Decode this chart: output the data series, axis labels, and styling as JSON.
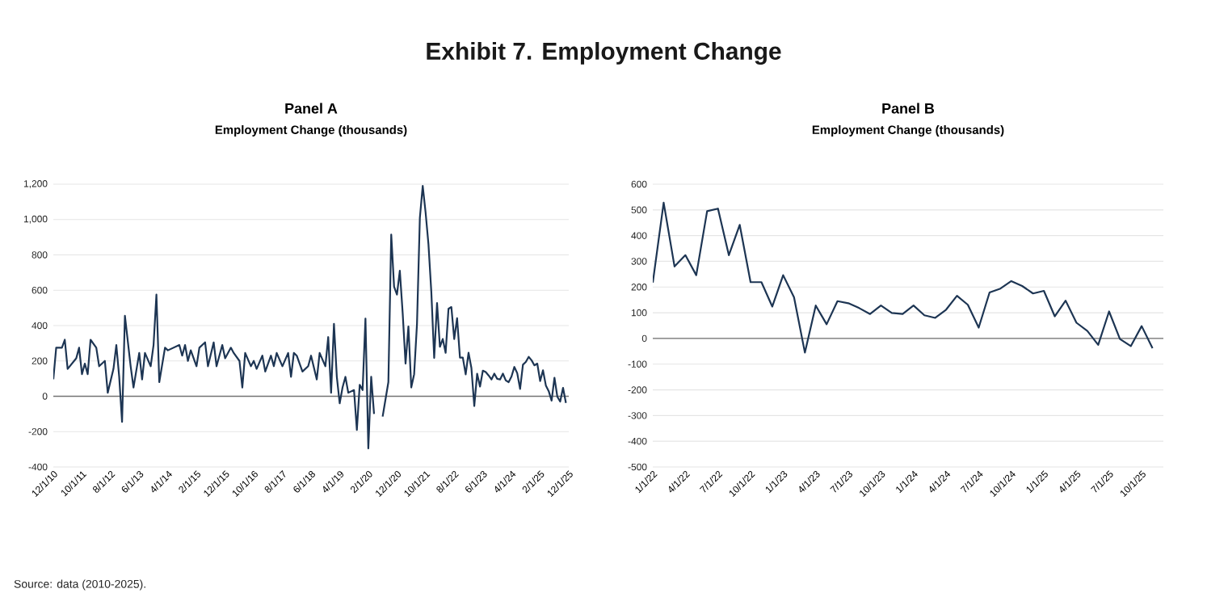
{
  "chart_data": [
    {
      "type": "line",
      "title": "Panel A",
      "subtitle": "Employment Change (thousands)",
      "annotations": [
        "Exhibit 7. Employment Change",
        "Source: data (2010-2025)."
      ],
      "x": [
        "2010-12",
        "2011-01",
        "2011-03",
        "2011-04",
        "2011-05",
        "2011-08",
        "2011-09",
        "2011-10",
        "2011-11",
        "2011-12",
        "2012-01",
        "2012-03",
        "2012-04",
        "2012-06",
        "2012-07",
        "2012-09",
        "2012-10",
        "2012-11",
        "2012-12",
        "2013-01",
        "2013-03",
        "2013-04",
        "2013-06",
        "2013-07",
        "2013-08",
        "2013-10",
        "2013-11",
        "2013-12",
        "2014-01",
        "2014-03",
        "2014-04",
        "2014-06",
        "2014-08",
        "2014-09",
        "2014-10",
        "2014-11",
        "2014-12",
        "2015-02",
        "2015-03",
        "2015-05",
        "2015-06",
        "2015-08",
        "2015-09",
        "2015-11",
        "2015-12",
        "2016-02",
        "2016-03",
        "2016-05",
        "2016-06",
        "2016-07",
        "2016-09",
        "2016-10",
        "2016-11",
        "2017-01",
        "2017-02",
        "2017-04",
        "2017-05",
        "2017-06",
        "2017-08",
        "2017-10",
        "2017-11",
        "2017-12",
        "2018-01",
        "2018-03",
        "2018-05",
        "2018-06",
        "2018-08",
        "2018-09",
        "2018-11",
        "2018-12",
        "2019-01",
        "2019-02",
        "2019-03",
        "2019-04",
        "2019-05",
        "2019-06",
        "2019-07",
        "2019-09",
        "2019-10",
        "2019-11",
        "2019-12",
        "2020-01",
        "2020-02",
        "2020-03",
        "2020-04",
        "2020-05",
        "2020-06",
        "2020-07",
        "2020-09",
        "2020-10",
        "2020-11",
        "2020-12",
        "2021-01",
        "2021-02",
        "2021-03",
        "2021-04",
        "2021-05",
        "2021-06",
        "2021-07",
        "2021-08",
        "2021-09",
        "2021-10",
        "2021-11",
        "2021-12",
        "2022-01",
        "2022-02",
        "2022-03",
        "2022-04",
        "2022-05",
        "2022-06",
        "2022-07",
        "2022-08",
        "2022-09",
        "2022-10",
        "2022-11",
        "2022-12",
        "2023-01",
        "2023-02",
        "2023-03",
        "2023-04",
        "2023-05",
        "2023-06",
        "2023-07",
        "2023-08",
        "2023-09",
        "2023-10",
        "2023-11",
        "2023-12",
        "2024-01",
        "2024-02",
        "2024-03",
        "2024-04",
        "2024-05",
        "2024-06",
        "2024-07",
        "2024-08",
        "2024-09",
        "2024-10",
        "2024-11",
        "2024-12",
        "2025-01",
        "2025-02",
        "2025-03",
        "2025-04",
        "2025-05",
        "2025-06",
        "2025-07",
        "2025-08",
        "2025-09",
        "2025-10",
        "2025-11"
      ],
      "series": [
        {
          "color": "#1d3553",
          "values": [
            96,
            275,
            275,
            320,
            155,
            215,
            275,
            125,
            185,
            125,
            320,
            275,
            170,
            200,
            20,
            155,
            290,
            110,
            -145,
            455,
            170,
            50,
            245,
            95,
            245,
            170,
            290,
            575,
            80,
            275,
            260,
            275,
            290,
            230,
            290,
            200,
            260,
            170,
            275,
            305,
            170,
            305,
            170,
            290,
            215,
            275,
            245,
            200,
            50,
            245,
            170,
            200,
            155,
            230,
            140,
            230,
            170,
            245,
            170,
            245,
            110,
            245,
            230,
            140,
            170,
            230,
            95,
            245,
            170,
            335,
            20,
            410,
            110,
            -40,
            50,
            110,
            20,
            35,
            -190,
            65,
            35,
            440,
            -295,
            110,
            -100,
            null,
            null,
            -115,
            80,
            915,
            620,
            575,
            710,
            470,
            185,
            395,
            50,
            125,
            410,
            1010,
            1190,
            1040,
            860,
            590,
            217,
            528,
            280,
            324,
            246,
            495,
            505,
            324,
            442,
            219,
            219,
            124,
            246,
            160,
            -55,
            128,
            55,
            145,
            137,
            118,
            95,
            128,
            99,
            95,
            128,
            90,
            80,
            112,
            166,
            131,
            42,
            179,
            194,
            223,
            204,
            175,
            185,
            86,
            147,
            61,
            29,
            -25,
            105,
            -2,
            -30,
            48,
            -38
          ]
        }
      ],
      "xlim": [
        "2010-12",
        "2025-12"
      ],
      "xticks": [
        {
          "value": "2010-12",
          "label": "12/1/10"
        },
        {
          "value": "2011-10",
          "label": "10/1/11"
        },
        {
          "value": "2012-08",
          "label": "8/1/12"
        },
        {
          "value": "2013-06",
          "label": "6/1/13"
        },
        {
          "value": "2014-04",
          "label": "4/1/14"
        },
        {
          "value": "2015-02",
          "label": "2/1/15"
        },
        {
          "value": "2015-12",
          "label": "12/1/15"
        },
        {
          "value": "2016-10",
          "label": "10/1/16"
        },
        {
          "value": "2017-08",
          "label": "8/1/17"
        },
        {
          "value": "2018-06",
          "label": "6/1/18"
        },
        {
          "value": "2019-04",
          "label": "4/1/19"
        },
        {
          "value": "2020-02",
          "label": "2/1/20"
        },
        {
          "value": "2020-12",
          "label": "12/1/20"
        },
        {
          "value": "2021-10",
          "label": "10/1/21"
        },
        {
          "value": "2022-08",
          "label": "8/1/22"
        },
        {
          "value": "2023-06",
          "label": "6/1/23"
        },
        {
          "value": "2024-04",
          "label": "4/1/24"
        },
        {
          "value": "2025-02",
          "label": "2/1/25"
        },
        {
          "value": "2025-12",
          "label": "12/1/25"
        }
      ],
      "ylim": [
        -400,
        1200
      ],
      "yticks": [
        -400,
        -200,
        0,
        200,
        400,
        600,
        800,
        {
          "value": 1000,
          "label": "1,000"
        },
        {
          "value": 1200,
          "label": "1,200"
        }
      ],
      "grid": "y"
    },
    {
      "type": "line",
      "title": "Panel B",
      "subtitle": "Employment Change (thousands)",
      "x": [
        "2022-01",
        "2022-02",
        "2022-03",
        "2022-04",
        "2022-05",
        "2022-06",
        "2022-07",
        "2022-08",
        "2022-09",
        "2022-10",
        "2022-11",
        "2022-12",
        "2023-01",
        "2023-02",
        "2023-03",
        "2023-04",
        "2023-05",
        "2023-06",
        "2023-07",
        "2023-08",
        "2023-09",
        "2023-10",
        "2023-11",
        "2023-12",
        "2024-01",
        "2024-02",
        "2024-03",
        "2024-04",
        "2024-05",
        "2024-06",
        "2024-07",
        "2024-08",
        "2024-09",
        "2024-10",
        "2024-11",
        "2024-12",
        "2025-01",
        "2025-02",
        "2025-03",
        "2025-04",
        "2025-05",
        "2025-06",
        "2025-07",
        "2025-08",
        "2025-09",
        "2025-10",
        "2025-11"
      ],
      "series": [
        {
          "color": "#1d3553",
          "values": [
            217,
            528,
            280,
            324,
            246,
            495,
            505,
            324,
            442,
            219,
            219,
            124,
            246,
            160,
            -55,
            128,
            55,
            145,
            137,
            118,
            95,
            128,
            99,
            95,
            128,
            90,
            80,
            112,
            166,
            131,
            42,
            179,
            194,
            223,
            204,
            175,
            185,
            86,
            147,
            61,
            29,
            -25,
            105,
            -2,
            -30,
            48,
            -38
          ]
        }
      ],
      "xlim": [
        "2022-01",
        "2025-12"
      ],
      "xticks": [
        {
          "value": "2022-01",
          "label": "1/1/22"
        },
        {
          "value": "2022-04",
          "label": "4/1/22"
        },
        {
          "value": "2022-07",
          "label": "7/1/22"
        },
        {
          "value": "2022-10",
          "label": "10/1/22"
        },
        {
          "value": "2023-01",
          "label": "1/1/23"
        },
        {
          "value": "2023-04",
          "label": "4/1/23"
        },
        {
          "value": "2023-07",
          "label": "7/1/23"
        },
        {
          "value": "2023-10",
          "label": "10/1/23"
        },
        {
          "value": "2024-01",
          "label": "1/1/24"
        },
        {
          "value": "2024-04",
          "label": "4/1/24"
        },
        {
          "value": "2024-07",
          "label": "7/1/24"
        },
        {
          "value": "2024-10",
          "label": "10/1/24"
        },
        {
          "value": "2025-01",
          "label": "1/1/25"
        },
        {
          "value": "2025-04",
          "label": "4/1/25"
        },
        {
          "value": "2025-07",
          "label": "7/1/25"
        },
        {
          "value": "2025-10",
          "label": "10/1/25"
        }
      ],
      "ylim": [
        -500,
        600
      ],
      "yticks": [
        -500,
        -400,
        -300,
        -200,
        -100,
        0,
        100,
        200,
        300,
        400,
        500,
        600
      ],
      "grid": "y"
    }
  ]
}
